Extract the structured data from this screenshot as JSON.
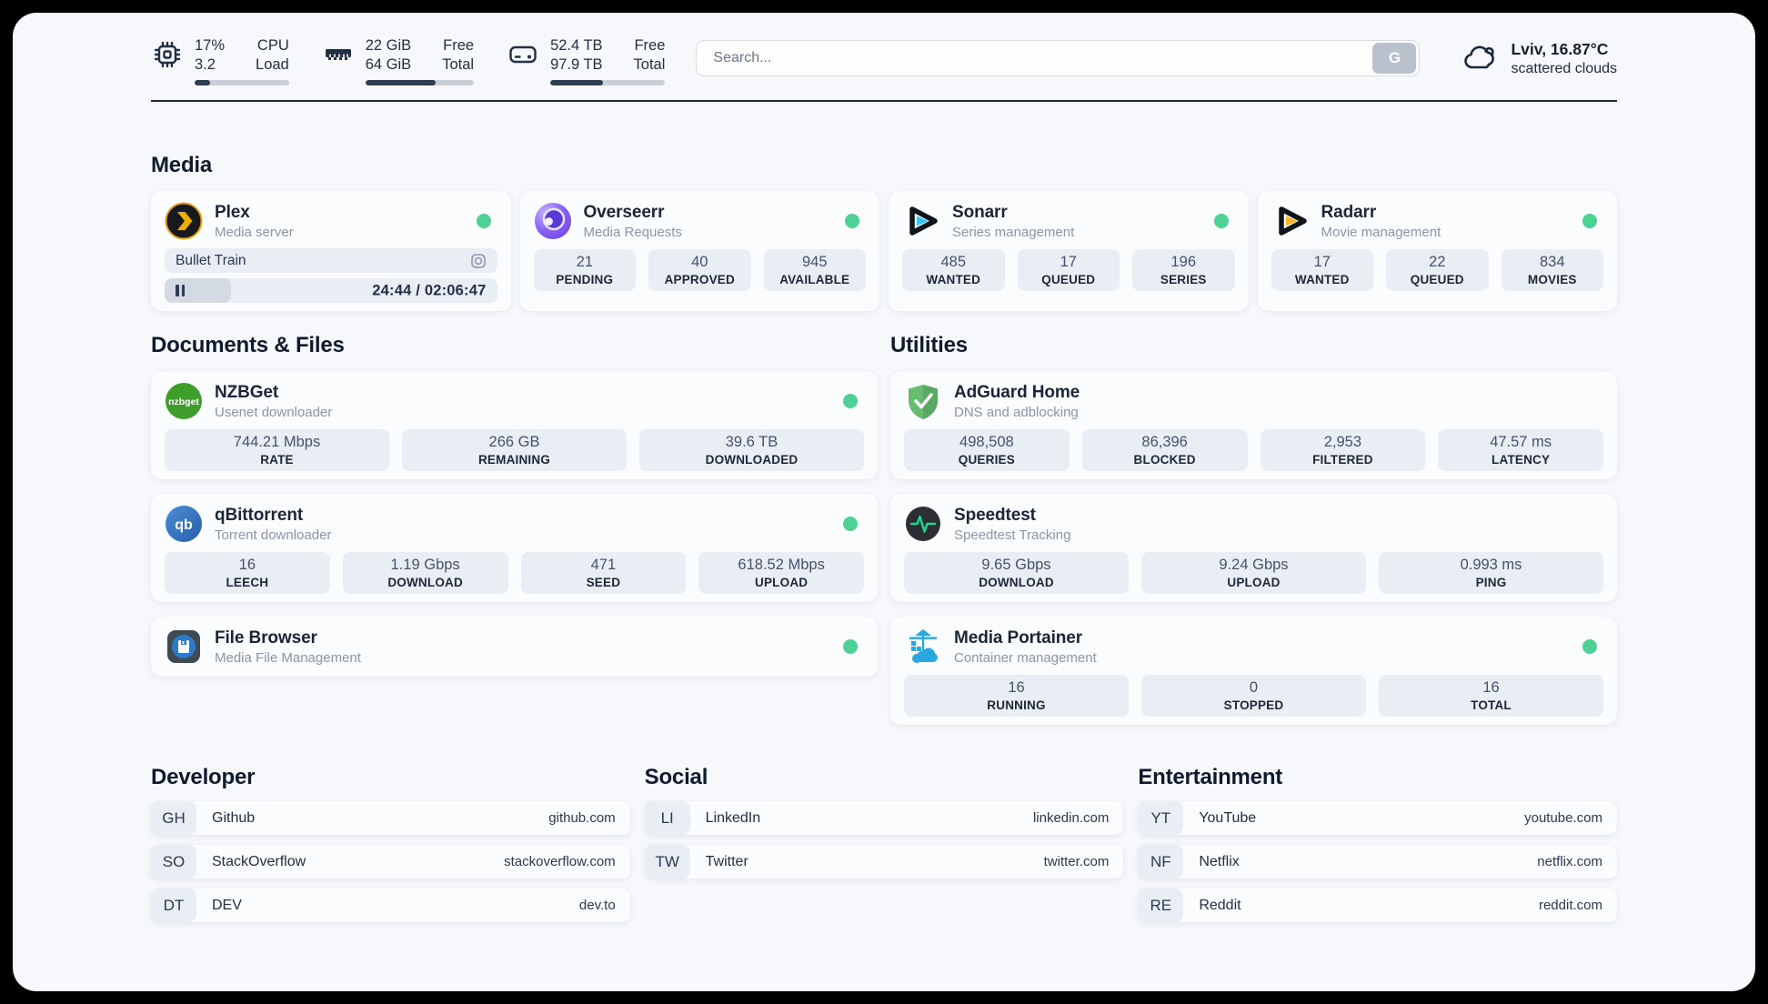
{
  "colors": {
    "status_green": "#4ed195",
    "bar_fill": "#2e3c52"
  },
  "header": {
    "system_stats": [
      {
        "icon": "cpu-icon",
        "value_top": "17%",
        "value_bottom": "3.2",
        "label_top": "CPU",
        "label_bottom": "Load",
        "progress_percent": 16
      },
      {
        "icon": "ram-icon",
        "value_top": "22 GiB",
        "value_bottom": "64 GiB",
        "label_top": "Free",
        "label_bottom": "Total",
        "progress_percent": 65
      },
      {
        "icon": "disk-icon",
        "value_top": "52.4 TB",
        "value_bottom": "97.9 TB",
        "label_top": "Free",
        "label_bottom": "Total",
        "progress_percent": 46
      }
    ],
    "search": {
      "placeholder": "Search...",
      "button_label": "G"
    },
    "weather": {
      "location_temp": "Lviv, 16.87°C",
      "condition": "scattered clouds"
    }
  },
  "media": {
    "title": "Media",
    "plex": {
      "name": "Plex",
      "desc": "Media server",
      "now_playing": "Bullet Train",
      "time": "24:44 / 02:06:47",
      "progress_percent": 20
    },
    "overseerr": {
      "name": "Overseerr",
      "desc": "Media Requests",
      "stats": [
        {
          "value": "21",
          "label": "PENDING"
        },
        {
          "value": "40",
          "label": "APPROVED"
        },
        {
          "value": "945",
          "label": "AVAILABLE"
        }
      ]
    },
    "sonarr": {
      "name": "Sonarr",
      "desc": "Series management",
      "stats": [
        {
          "value": "485",
          "label": "WANTED"
        },
        {
          "value": "17",
          "label": "QUEUED"
        },
        {
          "value": "196",
          "label": "SERIES"
        }
      ]
    },
    "radarr": {
      "name": "Radarr",
      "desc": "Movie management",
      "stats": [
        {
          "value": "17",
          "label": "WANTED"
        },
        {
          "value": "22",
          "label": "QUEUED"
        },
        {
          "value": "834",
          "label": "MOVIES"
        }
      ]
    }
  },
  "documents": {
    "title": "Documents & Files",
    "nzbget": {
      "name": "NZBGet",
      "desc": "Usenet downloader",
      "stats": [
        {
          "value": "744.21 Mbps",
          "label": "RATE"
        },
        {
          "value": "266 GB",
          "label": "REMAINING"
        },
        {
          "value": "39.6 TB",
          "label": "DOWNLOADED"
        }
      ]
    },
    "qbittorrent": {
      "name": "qBittorrent",
      "desc": "Torrent downloader",
      "stats": [
        {
          "value": "16",
          "label": "LEECH"
        },
        {
          "value": "1.19 Gbps",
          "label": "DOWNLOAD"
        },
        {
          "value": "471",
          "label": "SEED"
        },
        {
          "value": "618.52 Mbps",
          "label": "UPLOAD"
        }
      ]
    },
    "filebrowser": {
      "name": "File Browser",
      "desc": "Media File Management"
    }
  },
  "utilities": {
    "title": "Utilities",
    "adguard": {
      "name": "AdGuard Home",
      "desc": "DNS and adblocking",
      "stats": [
        {
          "value": "498,508",
          "label": "QUERIES"
        },
        {
          "value": "86,396",
          "label": "BLOCKED"
        },
        {
          "value": "2,953",
          "label": "FILTERED"
        },
        {
          "value": "47.57 ms",
          "label": "LATENCY"
        }
      ]
    },
    "speedtest": {
      "name": "Speedtest",
      "desc": "Speedtest Tracking",
      "stats": [
        {
          "value": "9.65 Gbps",
          "label": "DOWNLOAD"
        },
        {
          "value": "9.24 Gbps",
          "label": "UPLOAD"
        },
        {
          "value": "0.993 ms",
          "label": "PING"
        }
      ]
    },
    "portainer": {
      "name": "Media Portainer",
      "desc": "Container management",
      "stats": [
        {
          "value": "16",
          "label": "RUNNING"
        },
        {
          "value": "0",
          "label": "STOPPED"
        },
        {
          "value": "16",
          "label": "TOTAL"
        }
      ]
    }
  },
  "bookmarks": {
    "developer": {
      "title": "Developer",
      "items": [
        {
          "abbr": "GH",
          "name": "Github",
          "url": "github.com"
        },
        {
          "abbr": "SO",
          "name": "StackOverflow",
          "url": "stackoverflow.com"
        },
        {
          "abbr": "DT",
          "name": "DEV",
          "url": "dev.to"
        }
      ]
    },
    "social": {
      "title": "Social",
      "items": [
        {
          "abbr": "LI",
          "name": "LinkedIn",
          "url": "linkedin.com"
        },
        {
          "abbr": "TW",
          "name": "Twitter",
          "url": "twitter.com"
        }
      ]
    },
    "entertainment": {
      "title": "Entertainment",
      "items": [
        {
          "abbr": "YT",
          "name": "YouTube",
          "url": "youtube.com"
        },
        {
          "abbr": "NF",
          "name": "Netflix",
          "url": "netflix.com"
        },
        {
          "abbr": "RE",
          "name": "Reddit",
          "url": "reddit.com"
        }
      ]
    }
  }
}
